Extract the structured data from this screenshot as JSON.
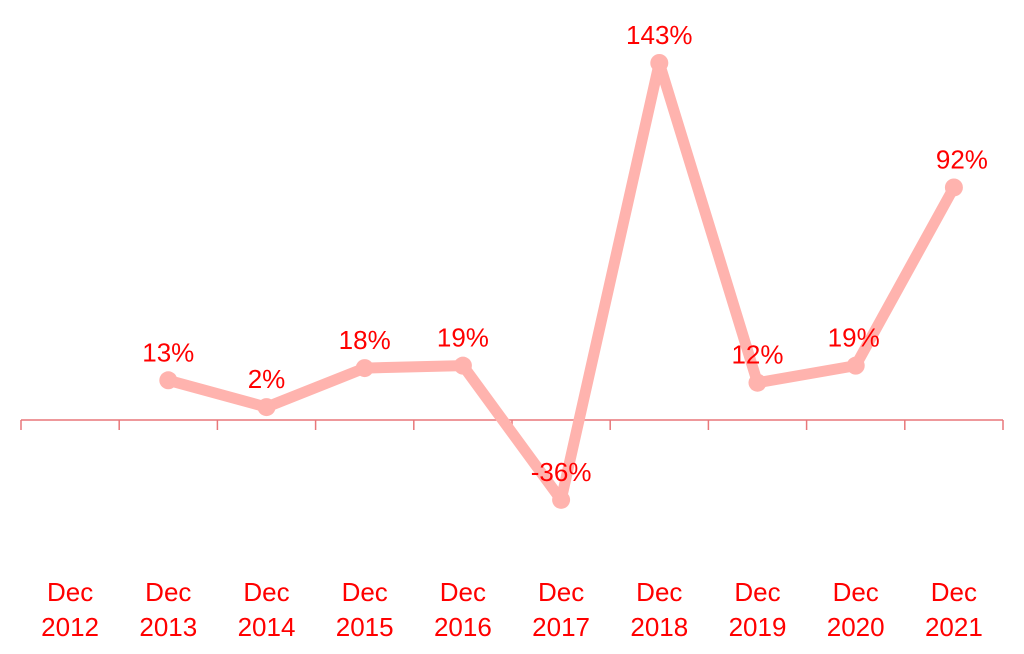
{
  "chart_data": {
    "type": "line",
    "categories": [
      [
        "Dec",
        "2012"
      ],
      [
        "Dec",
        "2013"
      ],
      [
        "Dec",
        "2014"
      ],
      [
        "Dec",
        "2015"
      ],
      [
        "Dec",
        "2016"
      ],
      [
        "Dec",
        "2017"
      ],
      [
        "Dec",
        "2018"
      ],
      [
        "Dec",
        "2019"
      ],
      [
        "Dec",
        "2020"
      ],
      [
        "Dec",
        "2021"
      ]
    ],
    "series": [
      {
        "values": [
          null,
          13,
          2,
          18,
          19,
          -36,
          143,
          12,
          19,
          92
        ],
        "labels": [
          "",
          "13%",
          "2%",
          "18%",
          "19%",
          "-36%",
          "143%",
          "12%",
          "19%",
          "92%"
        ],
        "color": "#ffb3ae"
      }
    ],
    "title": "",
    "xlabel": "",
    "ylabel": "",
    "y_unit": "%",
    "ylim": [
      -55,
      150
    ],
    "grid": false,
    "legend": "none",
    "label_color": "#ff0000",
    "axis_color": "#e8777a"
  }
}
